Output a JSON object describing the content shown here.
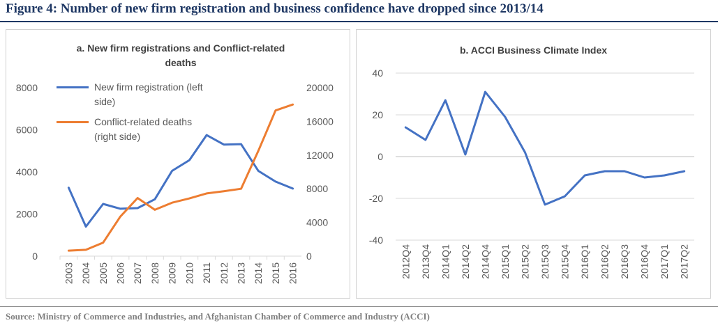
{
  "figure": {
    "title": "Figure 4: Number of new firm registration and business confidence have dropped since 2013/14",
    "source": "Source: Ministry of Commerce and Industries, and Afghanistan Chamber of Commerce and Industry (ACCI)"
  },
  "colors": {
    "blue": "#4472c4",
    "orange": "#ed7d31",
    "grid": "#d9d9d9",
    "axis_text": "#595959"
  },
  "chart_data": [
    {
      "type": "line",
      "title_lines": [
        "a. New firm registrations  and Conflict-related",
        "deaths"
      ],
      "x": [
        "2003",
        "2004",
        "2005",
        "2006",
        "2007",
        "2008",
        "2009",
        "2010",
        "2011",
        "2012",
        "2013",
        "2014",
        "2015",
        "2016"
      ],
      "series": [
        {
          "name": "New firm registration (left side)",
          "legend_lines": [
            "New firm registration (left",
            "side)"
          ],
          "axis": "left",
          "color": "#4472c4",
          "values": [
            3250,
            1400,
            2480,
            2250,
            2280,
            2700,
            4050,
            4560,
            5750,
            5300,
            5320,
            4050,
            3540,
            3210
          ]
        },
        {
          "name": "Conflict-related deaths (right side)",
          "legend_lines": [
            "Conflict-related deaths",
            "(right side)"
          ],
          "axis": "right",
          "color": "#ed7d31",
          "values": [
            650,
            750,
            1600,
            4700,
            6900,
            5500,
            6350,
            6850,
            7450,
            7700,
            8000,
            12500,
            17300,
            18000
          ]
        }
      ],
      "ylim_left": [
        0,
        8000
      ],
      "yticks_left": [
        0,
        2000,
        4000,
        6000,
        8000
      ],
      "ylim_right": [
        0,
        20000
      ],
      "yticks_right": [
        0,
        4000,
        8000,
        12000,
        16000,
        20000
      ],
      "grid": false,
      "legend": "top-left"
    },
    {
      "type": "line",
      "title": "b. ACCI Business Climate Index",
      "x": [
        "2012Q4",
        "2013Q4",
        "2014Q1",
        "2014Q2",
        "2014Q4",
        "2015Q1",
        "2015Q2",
        "2015Q3",
        "2015Q4",
        "2016Q1",
        "2016Q2",
        "2016Q3",
        "2016Q4",
        "2017Q1",
        "2017Q2"
      ],
      "series": [
        {
          "color": "#4472c4",
          "values": [
            14,
            8,
            27,
            1,
            31,
            19,
            2,
            -23,
            -19,
            -9,
            -7,
            -7,
            -10,
            -9,
            -7
          ]
        }
      ],
      "ylim": [
        -40,
        40
      ],
      "yticks": [
        -40,
        -20,
        0,
        20,
        40
      ],
      "grid": true,
      "legend": "none"
    }
  ]
}
